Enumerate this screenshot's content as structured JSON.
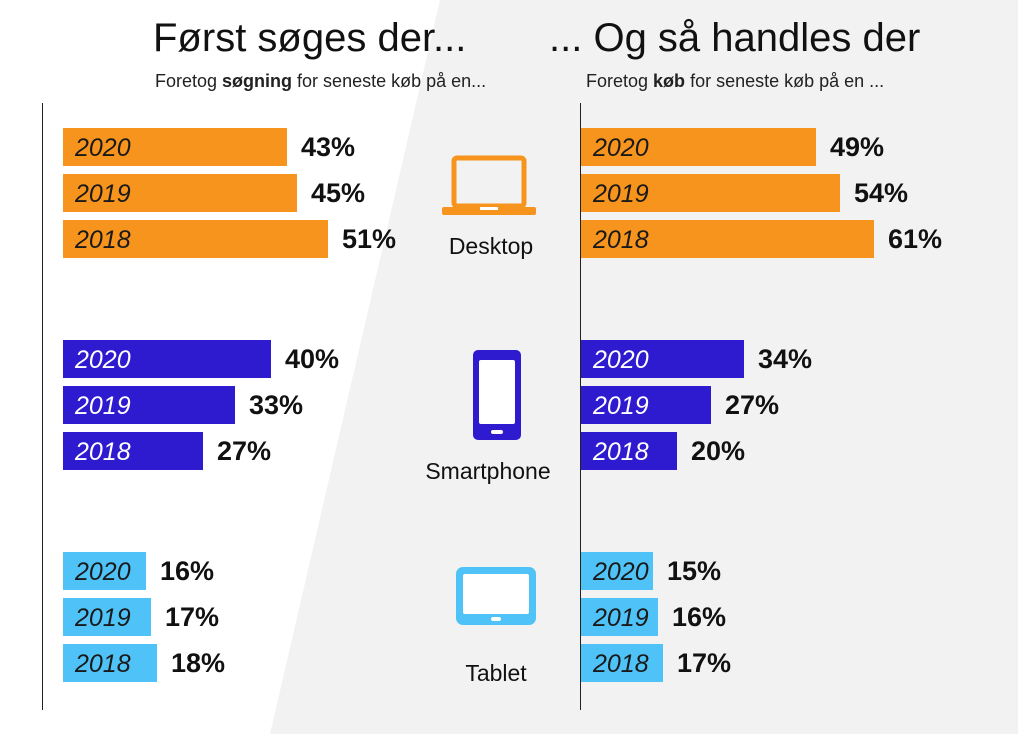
{
  "colors": {
    "desktop": "#F7941D",
    "smartphone": "#2E1ACF",
    "tablet": "#4FC3F7",
    "icon_desktop": "#F7941D",
    "icon_smartphone": "#2E1ACF",
    "icon_tablet": "#4FC3F7",
    "background_shade": "#F2F2F2"
  },
  "chart_data": [
    {
      "type": "bar",
      "orientation": "horizontal",
      "title": "Først søges der...",
      "subtitle_prefix": "Foretog ",
      "subtitle_bold": "søgning",
      "subtitle_suffix": " for seneste køb på en...",
      "groups": [
        {
          "name": "Desktop",
          "icon": "laptop-icon",
          "bars": [
            {
              "year": "2020",
              "value": 43,
              "label": "43%"
            },
            {
              "year": "2019",
              "value": 45,
              "label": "45%"
            },
            {
              "year": "2018",
              "value": 51,
              "label": "51%"
            }
          ]
        },
        {
          "name": "Smartphone",
          "icon": "smartphone-icon",
          "bars": [
            {
              "year": "2020",
              "value": 40,
              "label": "40%"
            },
            {
              "year": "2019",
              "value": 33,
              "label": "33%"
            },
            {
              "year": "2018",
              "value": 27,
              "label": "27%"
            }
          ]
        },
        {
          "name": "Tablet",
          "icon": "tablet-icon",
          "bars": [
            {
              "year": "2020",
              "value": 16,
              "label": "16%"
            },
            {
              "year": "2019",
              "value": 17,
              "label": "17%"
            },
            {
              "year": "2018",
              "value": 18,
              "label": "18%"
            }
          ]
        }
      ]
    },
    {
      "type": "bar",
      "orientation": "horizontal",
      "title": "... Og så handles der",
      "subtitle_prefix": "Foretog ",
      "subtitle_bold": "køb",
      "subtitle_suffix": " for seneste køb på en ...",
      "groups": [
        {
          "name": "Desktop",
          "icon": "laptop-icon",
          "bars": [
            {
              "year": "2020",
              "value": 49,
              "label": "49%"
            },
            {
              "year": "2019",
              "value": 54,
              "label": "54%"
            },
            {
              "year": "2018",
              "value": 61,
              "label": "61%"
            }
          ]
        },
        {
          "name": "Smartphone",
          "icon": "smartphone-icon",
          "bars": [
            {
              "year": "2020",
              "value": 34,
              "label": "34%"
            },
            {
              "year": "2019",
              "value": 27,
              "label": "27%"
            },
            {
              "year": "2018",
              "value": 20,
              "label": "20%"
            }
          ]
        },
        {
          "name": "Tablet",
          "icon": "tablet-icon",
          "bars": [
            {
              "year": "2020",
              "value": 15,
              "label": "15%"
            },
            {
              "year": "2019",
              "value": 16,
              "label": "16%"
            },
            {
              "year": "2018",
              "value": 17,
              "label": "17%"
            }
          ]
        }
      ]
    }
  ]
}
